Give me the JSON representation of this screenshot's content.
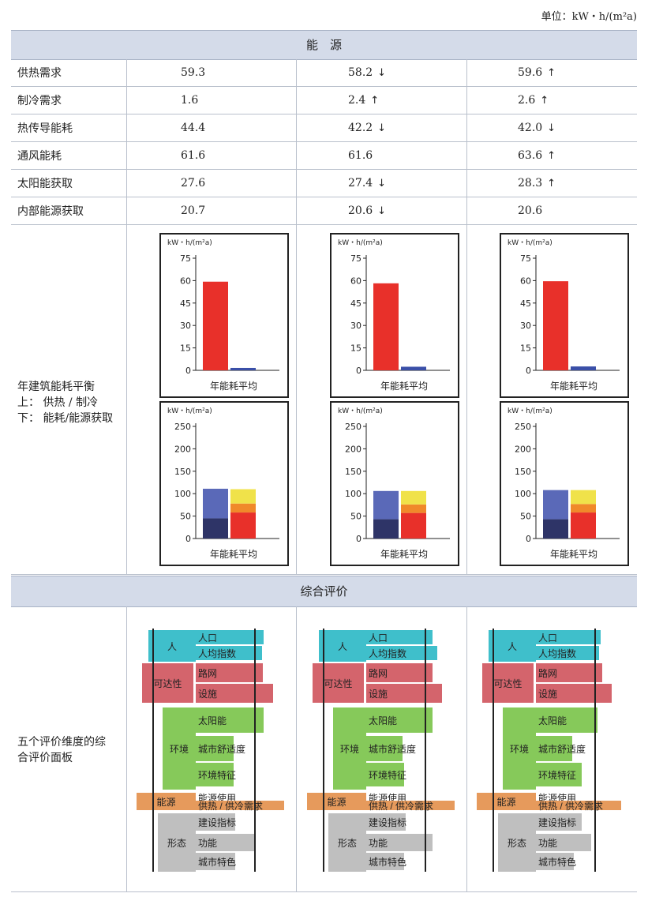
{
  "unit_label": "单位：kW・h/(m²a)",
  "section_energy": "能　源",
  "section_overall": "综合评价",
  "rows": [
    {
      "label": "供热需求",
      "values": [
        "59.3",
        "58.2",
        "59.6"
      ],
      "arrows": [
        "",
        "↓",
        "↑"
      ]
    },
    {
      "label": "制冷需求",
      "values": [
        "1.6",
        "2.4",
        "2.6"
      ],
      "arrows": [
        "",
        "↑",
        "↑"
      ]
    },
    {
      "label": "热传导能耗",
      "values": [
        "44.4",
        "42.2",
        "42.0"
      ],
      "arrows": [
        "",
        "↓",
        "↓"
      ]
    },
    {
      "label": "通风能耗",
      "values": [
        "61.6",
        "61.6",
        "63.6"
      ],
      "arrows": [
        "",
        "",
        "↑"
      ]
    },
    {
      "label": "太阳能获取",
      "values": [
        "27.6",
        "27.4",
        "28.3"
      ],
      "arrows": [
        "",
        "↓",
        "↑"
      ]
    },
    {
      "label": "内部能源获取",
      "values": [
        "20.7",
        "20.6",
        "20.6"
      ],
      "arrows": [
        "",
        "↓",
        ""
      ]
    }
  ],
  "balance_label": [
    "年建筑能耗平衡",
    "上： 供热 / 制冷",
    "下： 能耗/能源获取"
  ],
  "panel_label": [
    "五个评价维度的综",
    "合评价面板"
  ],
  "chart_data": {
    "type": "bar",
    "unit": "kW・h/(m²a)",
    "xlabel": "年能耗平均",
    "colors": {
      "heating": "#e8302a",
      "cooling": "#3a4fa8",
      "loss_dark": "#2e3467",
      "loss_light": "#5a69b8",
      "gain_red": "#e8302a",
      "gain_orange": "#f0892a",
      "gain_yellow": "#f0e24a"
    },
    "top": {
      "yticks": [
        0,
        15,
        30,
        45,
        60,
        75
      ],
      "ylim": [
        0,
        75
      ],
      "series": [
        {
          "heating": 59.3,
          "cooling": 1.6
        },
        {
          "heating": 58.2,
          "cooling": 2.4
        },
        {
          "heating": 59.6,
          "cooling": 2.6
        }
      ]
    },
    "bottom": {
      "yticks": [
        0,
        50,
        100,
        150,
        200,
        250
      ],
      "ylim": [
        0,
        250
      ],
      "series": [
        {
          "loss": [
            45,
            66
          ],
          "gain": [
            58,
            20,
            32
          ]
        },
        {
          "loss": [
            43,
            63
          ],
          "gain": [
            57,
            19,
            30
          ]
        },
        {
          "loss": [
            43,
            65
          ],
          "gain": [
            58,
            19,
            31
          ]
        }
      ]
    }
  },
  "panel": {
    "groups": [
      {
        "label": "人",
        "color": "#3fbfcb"
      },
      {
        "label": "可达性",
        "color": "#d4646c"
      },
      {
        "label": "环境",
        "color": "#86c95a"
      },
      {
        "label": "能源",
        "color": "#e69a5c"
      },
      {
        "label": "形态",
        "color": "#bfbfbf"
      }
    ],
    "items": [
      "人口",
      "人均指数",
      "路网",
      "设施",
      "太阳能",
      "城市舒适度",
      "环境特征",
      "能源使用",
      "供热 / 供冷需求",
      "建设指标",
      "功能",
      "城市特色"
    ]
  }
}
